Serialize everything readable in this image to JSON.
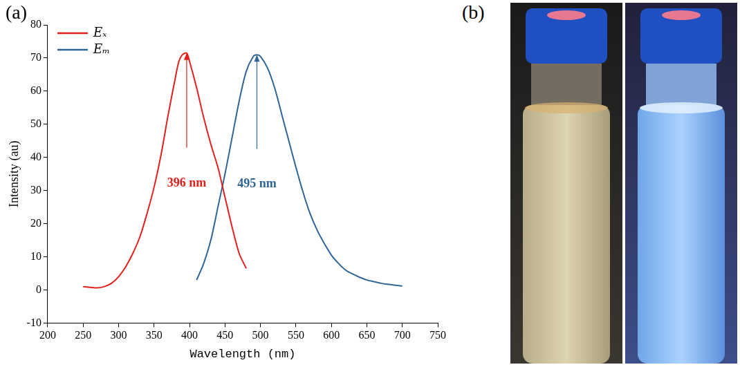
{
  "chart_data": {
    "type": "line",
    "panel": "(a)",
    "x_label": "Wavelength (nm)",
    "y_label": "Intensity (au)",
    "xlim": [
      200,
      750
    ],
    "xticks": [
      200,
      250,
      300,
      350,
      400,
      450,
      500,
      550,
      600,
      650,
      700,
      750
    ],
    "ylim": [
      -10,
      80
    ],
    "yticks": [
      -10,
      0,
      10,
      20,
      30,
      40,
      50,
      60,
      70,
      80
    ],
    "grid": false,
    "legend": "upper left",
    "series": [
      {
        "name": "Eₓ",
        "color": "#e3201b",
        "x": [
          250,
          260,
          270,
          280,
          290,
          300,
          310,
          320,
          330,
          340,
          350,
          360,
          370,
          380,
          385,
          390,
          396,
          400,
          410,
          420,
          430,
          440,
          450,
          460,
          470,
          480
        ],
        "values": [
          1,
          0.8,
          0.6,
          1,
          2,
          4,
          7,
          11,
          16,
          23,
          31,
          41,
          53,
          64,
          69,
          71,
          71.5,
          69,
          61,
          52,
          44,
          37,
          28,
          19,
          11,
          6.5
        ]
      },
      {
        "name": "Eₘ",
        "color": "#2e6596",
        "x": [
          410,
          420,
          430,
          440,
          450,
          460,
          470,
          480,
          490,
          495,
          500,
          510,
          520,
          530,
          540,
          550,
          560,
          570,
          580,
          590,
          600,
          610,
          620,
          630,
          640,
          650,
          660,
          670,
          680,
          690,
          700
        ],
        "values": [
          3,
          8,
          15,
          25,
          35,
          46,
          57,
          66,
          70.5,
          71,
          70.5,
          67,
          61,
          53,
          45,
          37,
          29.5,
          23,
          18,
          14,
          10.5,
          8,
          6,
          4.8,
          3.8,
          3,
          2.5,
          2,
          1.7,
          1.4,
          1.2
        ]
      }
    ],
    "annotations": [
      {
        "text": "396 nm",
        "x": 396,
        "color": "#e3201b"
      },
      {
        "text": "495 nm",
        "x": 495,
        "color": "#2e6596"
      }
    ]
  },
  "photo": {
    "panel": "(b)"
  }
}
